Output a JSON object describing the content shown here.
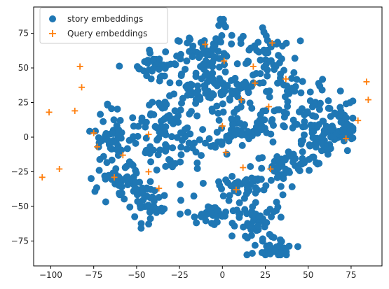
{
  "chart_data": {
    "type": "scatter",
    "title": "",
    "xlabel": "",
    "ylabel": "",
    "xlim": [
      -110,
      93
    ],
    "ylim": [
      -93,
      94
    ],
    "xticks": [
      -100,
      -75,
      -50,
      -25,
      0,
      25,
      50,
      75
    ],
    "yticks": [
      -75,
      -50,
      -25,
      0,
      25,
      50,
      75
    ],
    "grid": false,
    "legend_position": "top-left",
    "series": [
      {
        "name": "story embeddings",
        "marker": "circle",
        "color": "#1f77b4",
        "clusters": [
          {
            "cx": 0,
            "cy": 84,
            "rx": 3,
            "ry": 4,
            "n": 6
          },
          {
            "cx": -8,
            "cy": 60,
            "rx": 18,
            "ry": 12,
            "n": 60
          },
          {
            "cx": 25,
            "cy": 58,
            "rx": 14,
            "ry": 18,
            "n": 50
          },
          {
            "cx": -35,
            "cy": 52,
            "rx": 14,
            "ry": 10,
            "n": 45
          },
          {
            "cx": 8,
            "cy": 40,
            "rx": 30,
            "ry": 10,
            "n": 55
          },
          {
            "cx": -15,
            "cy": 28,
            "rx": 24,
            "ry": 14,
            "n": 55
          },
          {
            "cx": 45,
            "cy": 22,
            "rx": 22,
            "ry": 18,
            "n": 60
          },
          {
            "cx": 70,
            "cy": 8,
            "rx": 12,
            "ry": 14,
            "n": 45
          },
          {
            "cx": 55,
            "cy": -2,
            "rx": 12,
            "ry": 12,
            "n": 45
          },
          {
            "cx": 10,
            "cy": 5,
            "rx": 26,
            "ry": 14,
            "n": 70
          },
          {
            "cx": -30,
            "cy": -8,
            "rx": 18,
            "ry": 18,
            "n": 60
          },
          {
            "cx": -62,
            "cy": 0,
            "rx": 12,
            "ry": 20,
            "n": 50
          },
          {
            "cx": -60,
            "cy": -35,
            "rx": 14,
            "ry": 12,
            "n": 50
          },
          {
            "cx": -45,
            "cy": -50,
            "rx": 10,
            "ry": 12,
            "n": 35
          },
          {
            "cx": 15,
            "cy": -35,
            "rx": 22,
            "ry": 12,
            "n": 55
          },
          {
            "cx": 20,
            "cy": -62,
            "rx": 14,
            "ry": 12,
            "n": 50
          },
          {
            "cx": 30,
            "cy": -80,
            "rx": 12,
            "ry": 6,
            "n": 30
          },
          {
            "cx": 40,
            "cy": -20,
            "rx": 18,
            "ry": 10,
            "n": 40
          },
          {
            "cx": -35,
            "cy": 15,
            "rx": 10,
            "ry": 12,
            "n": 30
          },
          {
            "cx": -8,
            "cy": -55,
            "rx": 14,
            "ry": 8,
            "n": 30
          }
        ]
      },
      {
        "name": "Query embeddings",
        "marker": "plus",
        "color": "#ff7f0e",
        "points": [
          [
            -105,
            -29
          ],
          [
            -101,
            18
          ],
          [
            -95,
            -23
          ],
          [
            -86,
            19
          ],
          [
            -83,
            51
          ],
          [
            -82,
            36
          ],
          [
            -75,
            3
          ],
          [
            -73,
            -7
          ],
          [
            -63,
            -29
          ],
          [
            -58,
            -13
          ],
          [
            -43,
            2
          ],
          [
            -43,
            -25
          ],
          [
            -37,
            -37
          ],
          [
            -10,
            67
          ],
          [
            0,
            8
          ],
          [
            1,
            55
          ],
          [
            2,
            -11
          ],
          [
            8,
            -38
          ],
          [
            11,
            27
          ],
          [
            12,
            -22
          ],
          [
            18,
            51
          ],
          [
            19,
            39
          ],
          [
            27,
            22
          ],
          [
            28,
            -23
          ],
          [
            29,
            68
          ],
          [
            37,
            42
          ],
          [
            72,
            -1
          ],
          [
            79,
            12
          ],
          [
            84,
            40
          ],
          [
            85,
            27
          ]
        ]
      }
    ]
  },
  "legend": {
    "items": [
      {
        "label": "story embeddings",
        "color": "#1f77b4"
      },
      {
        "label": "Query embeddings",
        "color": "#ff7f0e"
      }
    ]
  }
}
